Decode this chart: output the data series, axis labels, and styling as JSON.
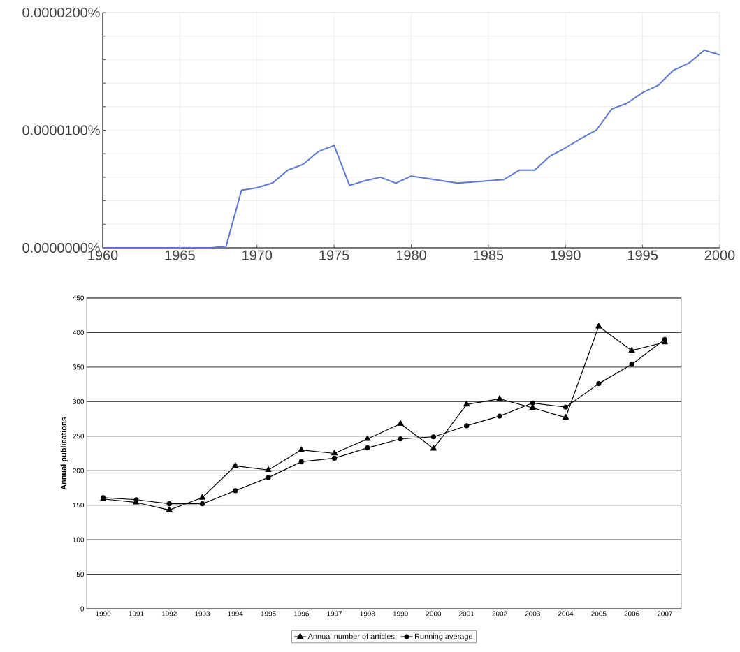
{
  "chart_data": [
    {
      "type": "line",
      "color": "#5a78d6",
      "grid": true,
      "x": [
        1960,
        1961,
        1962,
        1963,
        1964,
        1965,
        1966,
        1967,
        1968,
        1969,
        1970,
        1971,
        1972,
        1973,
        1974,
        1975,
        1976,
        1977,
        1978,
        1979,
        1980,
        1981,
        1982,
        1983,
        1984,
        1985,
        1986,
        1987,
        1988,
        1989,
        1990,
        1991,
        1992,
        1993,
        1994,
        1995,
        1996,
        1997,
        1998,
        1999,
        2000
      ],
      "values": [
        0,
        0,
        0,
        0,
        0,
        0,
        0,
        0,
        1.4e-07,
        4.9e-06,
        5.1e-06,
        5.5e-06,
        6.6e-06,
        7.1e-06,
        8.2e-06,
        8.7e-06,
        5.3e-06,
        5.7e-06,
        6e-06,
        5.5e-06,
        6.1e-06,
        5.9e-06,
        5.7e-06,
        5.5e-06,
        5.6e-06,
        5.7e-06,
        5.8e-06,
        6.6e-06,
        6.6e-06,
        7.8e-06,
        8.5e-06,
        9.3e-06,
        1e-05,
        1.18e-05,
        1.23e-05,
        1.32e-05,
        1.38e-05,
        1.51e-05,
        1.57e-05,
        1.68e-05,
        1.64e-05
      ],
      "xlim": [
        1960,
        2000
      ],
      "xticks": [
        1960,
        1965,
        1970,
        1975,
        1980,
        1985,
        1990,
        1995,
        2000
      ],
      "ylim": [
        0,
        2e-05
      ],
      "yticks": [
        {
          "value": 0,
          "label": "0.0000000%"
        },
        {
          "value": 2e-06,
          "label": null
        },
        {
          "value": 4e-06,
          "label": null
        },
        {
          "value": 6e-06,
          "label": null
        },
        {
          "value": 8e-06,
          "label": null
        },
        {
          "value": 1e-05,
          "label": "0.0000100%"
        },
        {
          "value": 1.2e-05,
          "label": null
        },
        {
          "value": 1.4e-05,
          "label": null
        },
        {
          "value": 1.6e-05,
          "label": null
        },
        {
          "value": 1.8e-05,
          "label": null
        },
        {
          "value": 2e-05,
          "label": "0.0000200%"
        }
      ]
    },
    {
      "type": "line",
      "ylabel": "Annual publications",
      "grid": "y",
      "legend": "bottom",
      "categories": [
        "1990",
        "1991",
        "1992",
        "1993",
        "1994",
        "1995",
        "1996",
        "1997",
        "1998",
        "1999",
        "2000",
        "2001",
        "2002",
        "2003",
        "2004",
        "2005",
        "2006",
        "2007"
      ],
      "ylim": [
        0,
        450
      ],
      "yticks": [
        0,
        50,
        100,
        150,
        200,
        250,
        300,
        350,
        400,
        450
      ],
      "series": [
        {
          "name": "Annual number of articles",
          "color": "#000000",
          "marker": "triangle",
          "values": [
            159,
            154,
            143,
            161,
            207,
            201,
            230,
            225,
            246,
            268,
            232,
            296,
            304,
            291,
            277,
            409,
            374,
            386
          ]
        },
        {
          "name": "Running average",
          "color": "#000000",
          "marker": "circle",
          "values": [
            161,
            158,
            152,
            152,
            171,
            190,
            213,
            218,
            233,
            246,
            249,
            265,
            279,
            298,
            292,
            326,
            354,
            390
          ]
        }
      ]
    }
  ]
}
